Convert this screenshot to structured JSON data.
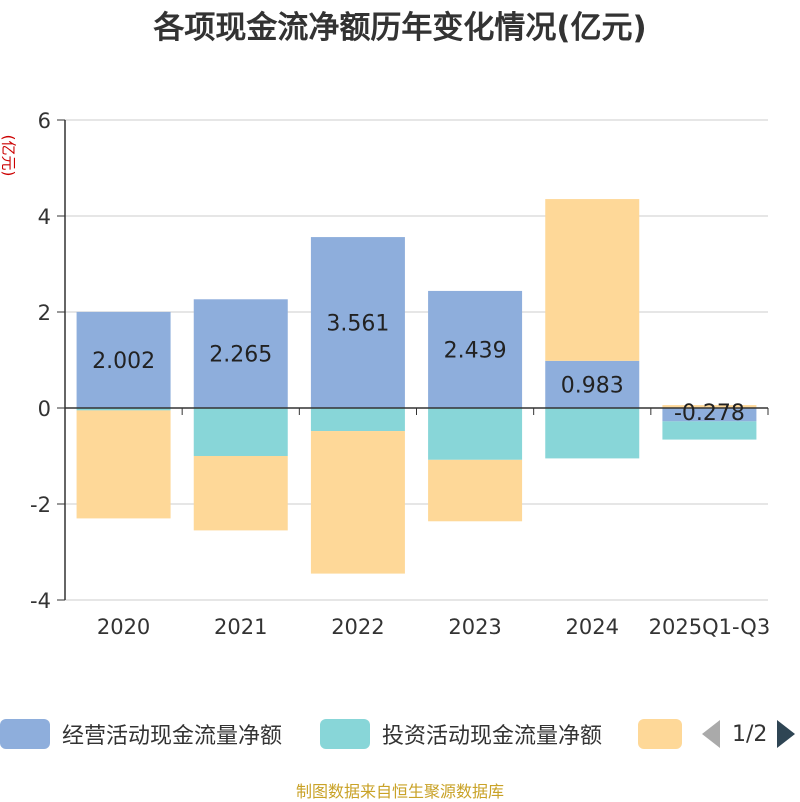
{
  "chart_data": {
    "type": "bar",
    "stacked": true,
    "title": "各项现金流净额历年变化情况(亿元)",
    "ylabel": "(亿元)",
    "categories": [
      "2020",
      "2021",
      "2022",
      "2023",
      "2024",
      "2025Q1-Q3"
    ],
    "ylim": [
      -4,
      6
    ],
    "yticks": [
      -4,
      -2,
      0,
      2,
      4,
      6
    ],
    "grid": true,
    "legend_position": "bottom",
    "series": [
      {
        "name": "经营活动现金流量净额",
        "color": "#8eaedc",
        "values": [
          2.002,
          2.265,
          3.561,
          2.439,
          0.983,
          -0.278
        ],
        "labels": [
          "2.002",
          "2.265",
          "3.561",
          "2.439",
          "0.983",
          "-0.278"
        ]
      },
      {
        "name": "投资活动现金流量净额",
        "color": "#88d6d8",
        "values": [
          -0.05,
          -1.0,
          -0.48,
          -1.08,
          -1.05,
          -0.38
        ]
      },
      {
        "name": "",
        "color": "#fed898",
        "values": [
          -2.25,
          -1.55,
          -2.97,
          -1.28,
          3.37,
          0.06
        ]
      }
    ]
  },
  "pager": {
    "text": "1/2"
  },
  "source": "制图数据来自恒生聚源数据库"
}
